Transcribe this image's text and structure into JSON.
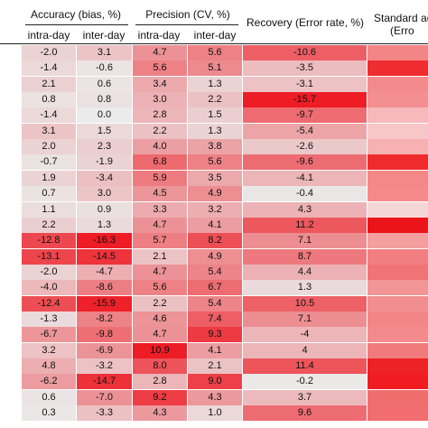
{
  "header": {
    "group_accuracy": "Accuracy (bias, %)",
    "group_precision": "Precision (CV, %)",
    "recovery": "Recovery (Error rate, %)",
    "standard_line1": "Standard ad",
    "standard_line2": "(Erro",
    "sub": [
      "intra-day",
      "inter-day",
      "intra-day",
      "inter-day"
    ]
  },
  "rows": [
    [
      "-2.0",
      "3.1",
      "4.7",
      "5.6",
      "-10.6"
    ],
    [
      "-1.4",
      "-0.6",
      "5.6",
      "5.1",
      "-3.5"
    ],
    [
      "2.1",
      "0.6",
      "3.4",
      "1.3",
      "-3.1"
    ],
    [
      "0.8",
      "0.8",
      "3.0",
      "2.2",
      "-15.7"
    ],
    [
      "-1.4",
      "0.0",
      "2.8",
      "1.5",
      "-9.7"
    ],
    [
      "3.1",
      "1.5",
      "2.2",
      "1.3",
      "-5.4"
    ],
    [
      "2.0",
      "2.3",
      "4.0",
      "3.8",
      "-2.6"
    ],
    [
      "-0.7",
      "-1.9",
      "6.8",
      "5.6",
      "-9.6"
    ],
    [
      "1.9",
      "-3.4",
      "5.9",
      "3.5",
      "-4.1"
    ],
    [
      "0.7",
      "3.0",
      "4.5",
      "4.9",
      "-0.4"
    ],
    [
      "1.1",
      "0.9",
      "3.3",
      "3.2",
      "4.3"
    ],
    [
      "2.2",
      "1.3",
      "4.7",
      "4.1",
      "11.2"
    ],
    [
      "-12.8",
      "-16.3",
      "5.7",
      "8.2",
      "7.1"
    ],
    [
      "-13.1",
      "-14.5",
      "2.1",
      "4.9",
      "8.7"
    ],
    [
      "-2.0",
      "-4.7",
      "4.7",
      "5.4",
      "4.4"
    ],
    [
      "-4.0",
      "-8.6",
      "5.6",
      "6.7",
      "1.3"
    ],
    [
      "-12.4",
      "-15.9",
      "2.2",
      "5.4",
      "10.5"
    ],
    [
      "-1.3",
      "-8.2",
      "4.6",
      "7.4",
      "7.1"
    ],
    [
      "-6.7",
      "-9.8",
      "4.7",
      "9.3",
      "-4"
    ],
    [
      "3.2",
      "-6.9",
      "10.9",
      "4.1",
      "4"
    ],
    [
      "4.8",
      "-3.2",
      "8.0",
      "2.1",
      "11.4"
    ],
    [
      "-6.2",
      "-14.7",
      "2.8",
      "9.0",
      "-0.2"
    ],
    [
      "0.6",
      "-7.0",
      "9.2",
      "4.3",
      "3.7"
    ],
    [
      "0.3",
      "-3.3",
      "4.3",
      "1.0",
      "9.6"
    ]
  ],
  "colors": {
    "heat_low": "#ebebeb",
    "heat_high": "#ee1c25",
    "standard_column_shades": [
      "#f48586",
      "#ef2c2f",
      "#f38b8c",
      "#f48f91",
      "#f7b9bb",
      "#f9c6c7",
      "#f7b1b2",
      "#ef2b2e",
      "#f48787",
      "#f68a8b",
      "#f5d6d6",
      "#eb1418",
      "#f39e9f",
      "#f17e80",
      "#f07475",
      "#f29597",
      "#f28e8f",
      "#f48586",
      "#f38b8d",
      "#f07a7c",
      "#ed2225",
      "#ef1d21",
      "#f06d6e",
      "#f26d70"
    ]
  }
}
